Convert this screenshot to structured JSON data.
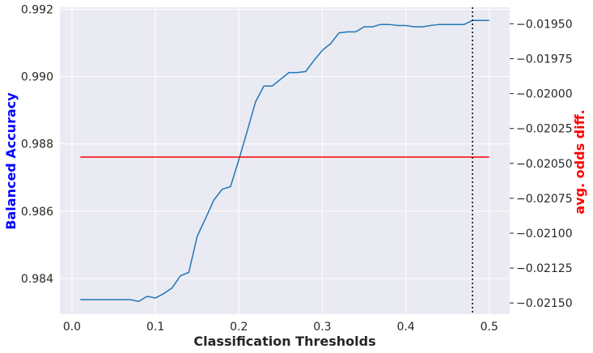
{
  "chart_data": {
    "type": "line",
    "xlabel": "Classification Thresholds",
    "ylabel_left": "Balanced Accuracy",
    "ylabel_right": "avg. odds diff.",
    "xlim": [
      -0.0145,
      0.5245
    ],
    "ylim_left": [
      0.98294,
      0.99206
    ],
    "ylim_right": [
      -0.02158,
      -0.019382
    ],
    "xticks": [
      0.0,
      0.1,
      0.2,
      0.3,
      0.4,
      0.5
    ],
    "xtick_labels": [
      "0.0",
      "0.1",
      "0.2",
      "0.3",
      "0.4",
      "0.5"
    ],
    "yticks_left": [
      0.984,
      0.986,
      0.988,
      0.99,
      0.992
    ],
    "ytick_labels_left": [
      "0.984",
      "0.986",
      "0.988",
      "0.990",
      "0.992"
    ],
    "yticks_right": [
      -0.0215,
      -0.02125,
      -0.021,
      -0.02075,
      -0.0205,
      -0.02025,
      -0.02,
      -0.01975,
      -0.0195
    ],
    "ytick_labels_right": [
      "−0.02150",
      "−0.02125",
      "−0.02100",
      "−0.02075",
      "−0.02050",
      "−0.02025",
      "−0.02000",
      "−0.01975",
      "−0.01950"
    ],
    "grid": true,
    "series": [
      {
        "axis": "left",
        "color": "#1f77b4",
        "x": [
          0.01,
          0.02,
          0.03,
          0.04,
          0.05,
          0.06,
          0.07,
          0.08,
          0.09,
          0.1,
          0.11,
          0.12,
          0.13,
          0.14,
          0.15,
          0.16,
          0.17,
          0.18,
          0.19,
          0.2,
          0.21,
          0.22,
          0.23,
          0.24,
          0.25,
          0.26,
          0.27,
          0.28,
          0.29,
          0.3,
          0.31,
          0.32,
          0.33,
          0.34,
          0.35,
          0.36,
          0.37,
          0.38,
          0.39,
          0.4,
          0.41,
          0.42,
          0.43,
          0.44,
          0.45,
          0.46,
          0.47,
          0.48,
          0.49,
          0.5
        ],
        "y": [
          0.98337,
          0.98337,
          0.98337,
          0.98337,
          0.98337,
          0.98337,
          0.98337,
          0.98332,
          0.98347,
          0.98342,
          0.98355,
          0.98372,
          0.98408,
          0.98418,
          0.98525,
          0.98578,
          0.98633,
          0.98665,
          0.98673,
          0.98753,
          0.98838,
          0.98925,
          0.98972,
          0.98972,
          0.98992,
          0.99012,
          0.99012,
          0.99015,
          0.99048,
          0.99078,
          0.99098,
          0.9913,
          0.99133,
          0.99133,
          0.99148,
          0.99148,
          0.99155,
          0.99155,
          0.99152,
          0.99152,
          0.99148,
          0.99148,
          0.99152,
          0.99155,
          0.99155,
          0.99155,
          0.99155,
          0.99167,
          0.99167,
          0.99167
        ]
      },
      {
        "axis": "right",
        "color": "#ff0000",
        "x": [
          0.01,
          0.5
        ],
        "y": [
          -0.020455,
          -0.020455
        ]
      }
    ],
    "vline": {
      "x": 0.48,
      "style": "dotted",
      "color": "#000000"
    }
  },
  "colors": {
    "plot_background": "#eaeaf2",
    "grid": "#ffffff",
    "left_axis_label": "#0000ff",
    "right_axis_label": "#ff0000"
  }
}
